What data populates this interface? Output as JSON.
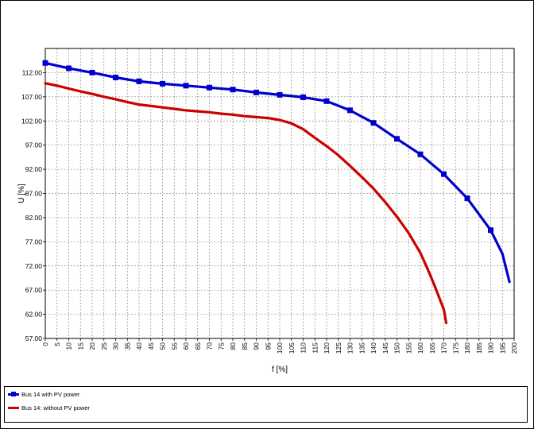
{
  "chart_data": {
    "type": "line",
    "xlabel": "f [%]",
    "ylabel": "U [%]",
    "xlim": [
      0,
      200
    ],
    "ylim": [
      57,
      117
    ],
    "x_ticks": [
      0,
      5,
      10,
      15,
      20,
      25,
      30,
      35,
      40,
      45,
      50,
      55,
      60,
      65,
      70,
      75,
      80,
      85,
      90,
      95,
      100,
      105,
      110,
      115,
      120,
      125,
      130,
      135,
      140,
      145,
      150,
      155,
      160,
      165,
      170,
      175,
      180,
      185,
      190,
      195,
      200
    ],
    "y_ticks": [
      57.0,
      62.0,
      67.0,
      72.0,
      77.0,
      82.0,
      87.0,
      92.0,
      97.0,
      102.0,
      107.0,
      112.0
    ],
    "y_tick_labels": [
      "57.00",
      "62.00",
      "67.00",
      "72.00",
      "77.00",
      "82.00",
      "87.00",
      "92.00",
      "97.00",
      "102.00",
      "107.00",
      "112.00"
    ],
    "grid": true,
    "legend_position": "bottom",
    "series": [
      {
        "name": "Bus 14 with PV power",
        "color": "#0000cc",
        "marker": "square",
        "x": [
          0,
          10,
          20,
          30,
          40,
          50,
          60,
          70,
          80,
          90,
          100,
          110,
          120,
          130,
          140,
          150,
          160,
          170,
          180,
          190,
          195,
          198
        ],
        "y": [
          114.0,
          112.9,
          112.0,
          111.0,
          110.2,
          109.7,
          109.3,
          108.9,
          108.5,
          107.9,
          107.4,
          106.9,
          106.1,
          104.2,
          101.6,
          98.3,
          95.1,
          91.0,
          86.0,
          79.4,
          74.5,
          68.7
        ]
      },
      {
        "name": "Bus 14: without PV power",
        "color": "#cc0000",
        "marker": "none",
        "x": [
          0,
          5,
          10,
          15,
          20,
          25,
          30,
          35,
          40,
          45,
          50,
          55,
          60,
          65,
          70,
          75,
          80,
          85,
          90,
          95,
          100,
          105,
          110,
          115,
          120,
          125,
          130,
          135,
          140,
          145,
          150,
          155,
          160,
          163,
          166,
          168,
          170,
          171
        ],
        "y": [
          109.8,
          109.3,
          108.7,
          108.1,
          107.6,
          107.0,
          106.5,
          105.9,
          105.4,
          105.1,
          104.8,
          104.5,
          104.2,
          104.0,
          103.8,
          103.5,
          103.3,
          103.0,
          102.8,
          102.6,
          102.2,
          101.5,
          100.3,
          98.5,
          96.8,
          94.9,
          92.7,
          90.4,
          88.0,
          85.2,
          82.2,
          78.8,
          74.7,
          71.5,
          68.0,
          65.5,
          63.0,
          60.2
        ]
      }
    ]
  }
}
